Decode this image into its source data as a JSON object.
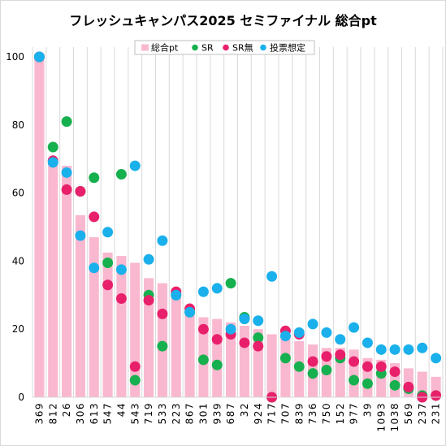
{
  "chart_data": {
    "type": "bar",
    "title": "フレッシュキャンパス2025 セミファイナル 総合pt",
    "xlabel": "",
    "ylabel": "",
    "ylim": [
      0,
      100
    ],
    "yticks": [
      0,
      20,
      40,
      60,
      80,
      100
    ],
    "grid": "vertical",
    "legend": "top",
    "categories": [
      "369",
      "812",
      "26",
      "306",
      "613",
      "547",
      "44",
      "543",
      "719",
      "533",
      "223",
      "867",
      "301",
      "939",
      "687",
      "32",
      "924",
      "717",
      "707",
      "839",
      "736",
      "750",
      "152",
      "977",
      "39",
      "1093",
      "1038",
      "569",
      "237",
      "231"
    ],
    "series": [
      {
        "name": "総合pt",
        "kind": "bar",
        "color": "#f9b8cf",
        "values": [
          100,
          69,
          68,
          53.5,
          47,
          42.5,
          41.5,
          39.5,
          35,
          33.5,
          31,
          26,
          23.5,
          23,
          22,
          21,
          20,
          18.5,
          18,
          16.5,
          15.5,
          14.5,
          14.5,
          14,
          11.5,
          11,
          10,
          8.5,
          7.5,
          6
        ]
      },
      {
        "name": "SR",
        "kind": "scatter",
        "color": "#16b04f",
        "values": [
          100,
          73.5,
          81,
          60.5,
          64.5,
          39.5,
          65.5,
          5,
          30,
          15,
          30,
          25,
          11,
          9.5,
          33.5,
          23.5,
          17.5,
          0,
          11.5,
          9,
          7,
          8,
          11.5,
          5,
          4,
          7,
          3.5,
          2.5,
          0.5,
          0.5
        ]
      },
      {
        "name": "SR無",
        "kind": "scatter",
        "color": "#e8206b",
        "values": [
          100,
          69.5,
          61,
          60.5,
          53,
          33,
          29,
          9,
          28.5,
          24.5,
          31,
          26,
          20,
          17,
          18.5,
          16,
          15,
          0,
          19.5,
          18.5,
          10.5,
          12,
          12.5,
          10.5,
          9,
          9,
          7.5,
          3,
          0,
          0.5
        ]
      },
      {
        "name": "投票想定",
        "kind": "scatter",
        "color": "#1ab0ec",
        "values": [
          100,
          69,
          66,
          47.5,
          38,
          48.5,
          37.5,
          68,
          40.5,
          46,
          30,
          25,
          31,
          32,
          20,
          23,
          22.5,
          35.5,
          18,
          19,
          21.5,
          19,
          17,
          20.5,
          16,
          14,
          14,
          14,
          14.5,
          11.5
        ]
      }
    ]
  }
}
